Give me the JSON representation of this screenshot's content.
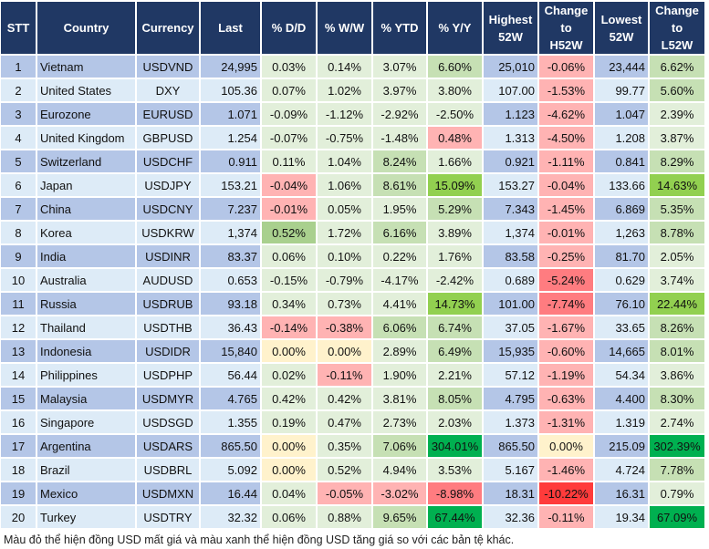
{
  "headers": [
    "STT",
    "Country",
    "Currency",
    "Last",
    "% D/D",
    "% W/W",
    "% YTD",
    "% Y/Y",
    "Highest\n52W",
    "Change\nto\nH52W",
    "Lowest\n52W",
    "Change\nto\nL52W"
  ],
  "palette": {
    "p": "#e2efda",
    "m": "#c6e0b4",
    "M": "#a9d08e",
    "b": "#92d050",
    "d": "#00b050",
    "y": "#fff2cc",
    "r": "#ffb3b3",
    "R": "#ff7c80",
    "X": "#ff3b3b"
  },
  "rows": [
    {
      "stt": "1",
      "country": "Vietnam",
      "currency": "USDVND",
      "last": "24,995",
      "dd": "0.03%",
      "ww": "0.14%",
      "ytd": "3.07%",
      "yy": "6.60%",
      "high": "25,010",
      "h52": "-0.06%",
      "low": "23,444",
      "l52": "6.62%",
      "shades": [
        "p",
        "p",
        "p",
        "m",
        "r",
        "m"
      ]
    },
    {
      "stt": "2",
      "country": "United States",
      "currency": "DXY",
      "last": "105.36",
      "dd": "0.07%",
      "ww": "1.02%",
      "ytd": "3.97%",
      "yy": "3.80%",
      "high": "107.00",
      "h52": "-1.53%",
      "low": "99.77",
      "l52": "5.60%",
      "shades": [
        "p",
        "p",
        "p",
        "p",
        "r",
        "m"
      ]
    },
    {
      "stt": "3",
      "country": "Eurozone",
      "currency": "EURUSD",
      "last": "1.071",
      "dd": "-0.09%",
      "ww": "-1.12%",
      "ytd": "-2.92%",
      "yy": "-2.50%",
      "high": "1.123",
      "h52": "-4.62%",
      "low": "1.047",
      "l52": "2.39%",
      "shades": [
        "p",
        "p",
        "p",
        "p",
        "r",
        "p"
      ]
    },
    {
      "stt": "4",
      "country": "United Kingdom",
      "currency": "GBPUSD",
      "last": "1.254",
      "dd": "-0.07%",
      "ww": "-0.75%",
      "ytd": "-1.48%",
      "yy": "0.48%",
      "high": "1.313",
      "h52": "-4.50%",
      "low": "1.208",
      "l52": "3.87%",
      "shades": [
        "p",
        "p",
        "p",
        "r",
        "r",
        "p"
      ]
    },
    {
      "stt": "5",
      "country": "Switzerland",
      "currency": "USDCHF",
      "last": "0.911",
      "dd": "0.11%",
      "ww": "1.04%",
      "ytd": "8.24%",
      "yy": "1.66%",
      "high": "0.921",
      "h52": "-1.11%",
      "low": "0.841",
      "l52": "8.29%",
      "shades": [
        "p",
        "p",
        "m",
        "p",
        "r",
        "m"
      ]
    },
    {
      "stt": "6",
      "country": "Japan",
      "currency": "USDJPY",
      "last": "153.21",
      "dd": "-0.04%",
      "ww": "1.06%",
      "ytd": "8.61%",
      "yy": "15.09%",
      "high": "153.27",
      "h52": "-0.04%",
      "low": "133.66",
      "l52": "14.63%",
      "shades": [
        "r",
        "p",
        "m",
        "b",
        "r",
        "b"
      ]
    },
    {
      "stt": "7",
      "country": "China",
      "currency": "USDCNY",
      "last": "7.237",
      "dd": "-0.01%",
      "ww": "0.05%",
      "ytd": "1.95%",
      "yy": "5.29%",
      "high": "7.343",
      "h52": "-1.45%",
      "low": "6.869",
      "l52": "5.35%",
      "shades": [
        "r",
        "p",
        "p",
        "m",
        "r",
        "m"
      ]
    },
    {
      "stt": "8",
      "country": "Korea",
      "currency": "USDKRW",
      "last": "1,374",
      "dd": "0.52%",
      "ww": "1.72%",
      "ytd": "6.16%",
      "yy": "3.89%",
      "high": "1,374",
      "h52": "-0.01%",
      "low": "1,263",
      "l52": "8.78%",
      "shades": [
        "M",
        "p",
        "m",
        "p",
        "r",
        "m"
      ]
    },
    {
      "stt": "9",
      "country": "India",
      "currency": "USDINR",
      "last": "83.37",
      "dd": "0.06%",
      "ww": "0.10%",
      "ytd": "0.22%",
      "yy": "1.76%",
      "high": "83.58",
      "h52": "-0.25%",
      "low": "81.70",
      "l52": "2.05%",
      "shades": [
        "p",
        "p",
        "p",
        "p",
        "r",
        "p"
      ]
    },
    {
      "stt": "10",
      "country": "Australia",
      "currency": "AUDUSD",
      "last": "0.653",
      "dd": "-0.15%",
      "ww": "-0.79%",
      "ytd": "-4.17%",
      "yy": "-2.42%",
      "high": "0.689",
      "h52": "-5.24%",
      "low": "0.629",
      "l52": "3.74%",
      "shades": [
        "p",
        "p",
        "p",
        "p",
        "R",
        "p"
      ]
    },
    {
      "stt": "11",
      "country": "Russia",
      "currency": "USDRUB",
      "last": "93.18",
      "dd": "0.34%",
      "ww": "0.73%",
      "ytd": "4.41%",
      "yy": "14.73%",
      "high": "101.00",
      "h52": "-7.74%",
      "low": "76.10",
      "l52": "22.44%",
      "shades": [
        "p",
        "p",
        "p",
        "b",
        "R",
        "b"
      ]
    },
    {
      "stt": "12",
      "country": "Thailand",
      "currency": "USDTHB",
      "last": "36.43",
      "dd": "-0.14%",
      "ww": "-0.38%",
      "ytd": "6.06%",
      "yy": "6.74%",
      "high": "37.05",
      "h52": "-1.67%",
      "low": "33.65",
      "l52": "8.26%",
      "shades": [
        "r",
        "r",
        "m",
        "m",
        "r",
        "m"
      ]
    },
    {
      "stt": "13",
      "country": "Indonesia",
      "currency": "USDIDR",
      "last": "15,840",
      "dd": "0.00%",
      "ww": "0.00%",
      "ytd": "2.89%",
      "yy": "6.49%",
      "high": "15,935",
      "h52": "-0.60%",
      "low": "14,665",
      "l52": "8.01%",
      "shades": [
        "y",
        "y",
        "p",
        "m",
        "r",
        "m"
      ]
    },
    {
      "stt": "14",
      "country": "Philippines",
      "currency": "USDPHP",
      "last": "56.44",
      "dd": "0.02%",
      "ww": "-0.11%",
      "ytd": "1.90%",
      "yy": "2.21%",
      "high": "57.12",
      "h52": "-1.19%",
      "low": "54.34",
      "l52": "3.86%",
      "shades": [
        "p",
        "r",
        "p",
        "p",
        "r",
        "p"
      ]
    },
    {
      "stt": "15",
      "country": "Malaysia",
      "currency": "USDMYR",
      "last": "4.765",
      "dd": "0.42%",
      "ww": "0.42%",
      "ytd": "3.81%",
      "yy": "8.05%",
      "high": "4.795",
      "h52": "-0.63%",
      "low": "4.400",
      "l52": "8.30%",
      "shades": [
        "p",
        "p",
        "p",
        "m",
        "r",
        "m"
      ]
    },
    {
      "stt": "16",
      "country": "Singapore",
      "currency": "USDSGD",
      "last": "1.355",
      "dd": "0.19%",
      "ww": "0.47%",
      "ytd": "2.73%",
      "yy": "2.03%",
      "high": "1.373",
      "h52": "-1.31%",
      "low": "1.319",
      "l52": "2.74%",
      "shades": [
        "p",
        "p",
        "p",
        "p",
        "r",
        "p"
      ]
    },
    {
      "stt": "17",
      "country": "Argentina",
      "currency": "USDARS",
      "last": "865.50",
      "dd": "0.00%",
      "ww": "0.35%",
      "ytd": "7.06%",
      "yy": "304.01%",
      "high": "865.50",
      "h52": "0.00%",
      "low": "215.09",
      "l52": "302.39%",
      "shades": [
        "y",
        "p",
        "m",
        "d",
        "y",
        "d"
      ]
    },
    {
      "stt": "18",
      "country": "Brazil",
      "currency": "USDBRL",
      "last": "5.092",
      "dd": "0.00%",
      "ww": "0.52%",
      "ytd": "4.94%",
      "yy": "3.53%",
      "high": "5.167",
      "h52": "-1.46%",
      "low": "4.724",
      "l52": "7.78%",
      "shades": [
        "y",
        "p",
        "p",
        "p",
        "r",
        "m"
      ]
    },
    {
      "stt": "19",
      "country": "Mexico",
      "currency": "USDMXN",
      "last": "16.44",
      "dd": "0.04%",
      "ww": "-0.05%",
      "ytd": "-3.02%",
      "yy": "-8.98%",
      "high": "18.31",
      "h52": "-10.22%",
      "low": "16.31",
      "l52": "0.79%",
      "shades": [
        "p",
        "r",
        "r",
        "R",
        "X",
        "p"
      ]
    },
    {
      "stt": "20",
      "country": "Turkey",
      "currency": "USDTRY",
      "last": "32.32",
      "dd": "0.06%",
      "ww": "0.88%",
      "ytd": "9.65%",
      "yy": "67.44%",
      "high": "32.36",
      "h52": "-0.11%",
      "low": "19.34",
      "l52": "67.09%",
      "shades": [
        "p",
        "p",
        "m",
        "d",
        "r",
        "d"
      ]
    }
  ],
  "footnote": "Màu đỏ thể hiện đồng USD mất giá và màu xanh thể hiện đồng USD tăng giá so với các bản tệ khác."
}
